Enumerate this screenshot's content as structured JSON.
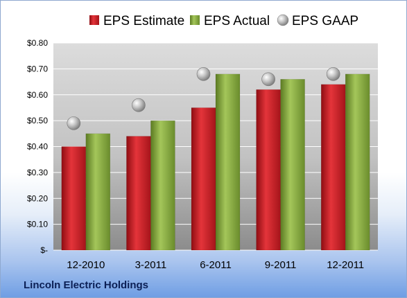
{
  "company": "Lincoln Electric Holdings",
  "chart_data": {
    "type": "bar",
    "categories": [
      "12-2010",
      "3-2011",
      "6-2011",
      "9-2011",
      "12-2011"
    ],
    "series": [
      {
        "name": "EPS Estimate",
        "type": "bar",
        "color": "#c0181f",
        "values": [
          0.4,
          0.44,
          0.55,
          0.62,
          0.64
        ]
      },
      {
        "name": "EPS Actual",
        "type": "bar",
        "color": "#7fa23a",
        "values": [
          0.45,
          0.5,
          0.68,
          0.66,
          0.68
        ]
      },
      {
        "name": "EPS GAAP",
        "type": "scatter",
        "color": "#a8a8a8",
        "values": [
          0.49,
          0.56,
          0.68,
          0.66,
          0.68
        ]
      }
    ],
    "ylim": [
      0,
      0.8
    ],
    "yticks": [
      "$-",
      "$0.10",
      "$0.20",
      "$0.30",
      "$0.40",
      "$0.50",
      "$0.60",
      "$0.70",
      "$0.80"
    ],
    "grid": true,
    "legend": "top"
  }
}
